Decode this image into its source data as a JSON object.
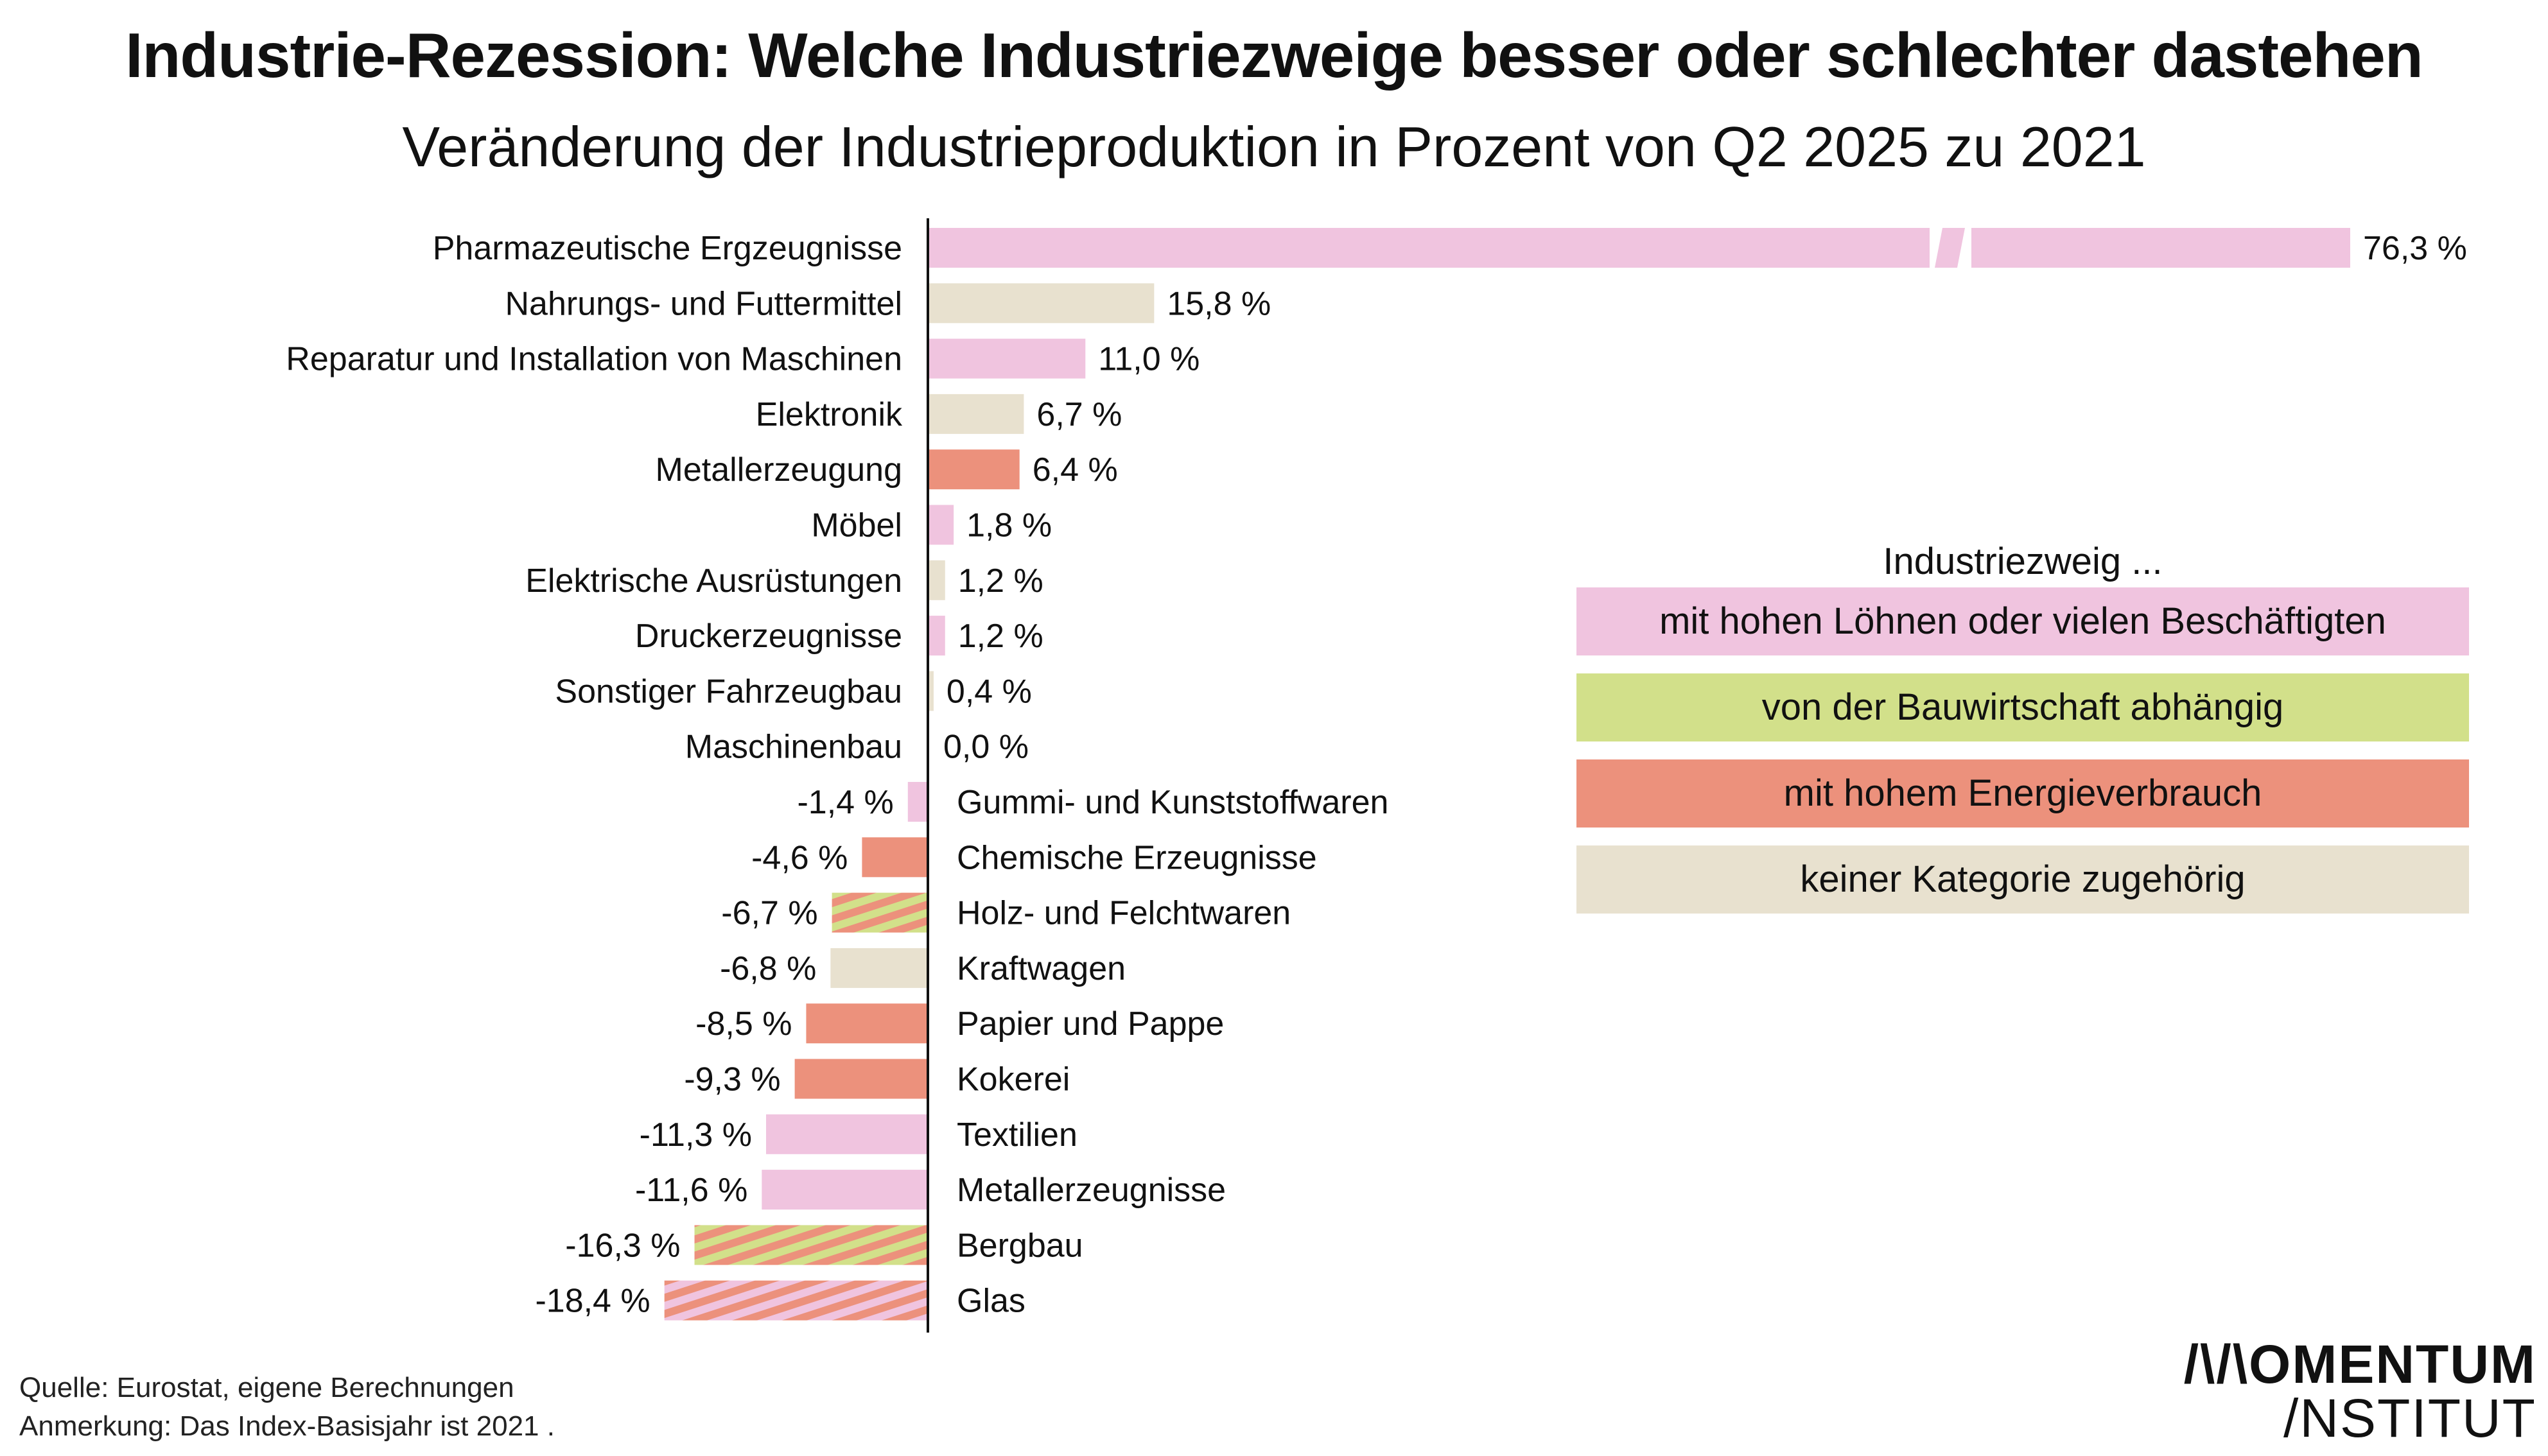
{
  "title": "Industrie-Rezession: Welche Industriezweige besser oder schlechter dastehen",
  "subtitle": "Veränderung der Industrieproduktion in Prozent von Q2 2025 zu 2021",
  "chart_data": {
    "type": "bar",
    "orientation": "horizontal",
    "unit": "%",
    "axis_break_on_largest_bar": true,
    "colors": {
      "high_wages": "#f0c4df",
      "construction": "#d2e08a",
      "energy": "#ec917c",
      "none": "#e8e1cf"
    },
    "bars": [
      {
        "label": "Pharmazeutische Ergzeugnisse",
        "value": 76.3,
        "value_label": "76,3 %",
        "categories": [
          "high_wages"
        ]
      },
      {
        "label": "Nahrungs- und Futtermittel",
        "value": 15.8,
        "value_label": "15,8 %",
        "categories": [
          "none"
        ]
      },
      {
        "label": "Reparatur und Installation von Maschinen",
        "value": 11.0,
        "value_label": "11,0 %",
        "categories": [
          "high_wages"
        ]
      },
      {
        "label": "Elektronik",
        "value": 6.7,
        "value_label": "6,7 %",
        "categories": [
          "none"
        ]
      },
      {
        "label": "Metallerzeugung",
        "value": 6.4,
        "value_label": "6,4 %",
        "categories": [
          "energy"
        ]
      },
      {
        "label": "Möbel",
        "value": 1.8,
        "value_label": "1,8 %",
        "categories": [
          "high_wages"
        ]
      },
      {
        "label": "Elektrische Ausrüstungen",
        "value": 1.2,
        "value_label": "1,2 %",
        "categories": [
          "none"
        ]
      },
      {
        "label": "Druckerzeugnisse",
        "value": 1.2,
        "value_label": "1,2 %",
        "categories": [
          "high_wages"
        ]
      },
      {
        "label": "Sonstiger Fahrzeugbau",
        "value": 0.4,
        "value_label": "0,4 %",
        "categories": [
          "none"
        ]
      },
      {
        "label": "Maschinenbau",
        "value": 0.0,
        "value_label": "0,0 %",
        "categories": [
          "high_wages"
        ]
      },
      {
        "label": "Gummi- und Kunststoffwaren",
        "value": -1.4,
        "value_label": "-1,4 %",
        "categories": [
          "high_wages"
        ]
      },
      {
        "label": "Chemische Erzeugnisse",
        "value": -4.6,
        "value_label": "-4,6 %",
        "categories": [
          "energy"
        ]
      },
      {
        "label": "Holz- und Felchtwaren",
        "value": -6.7,
        "value_label": "-6,7 %",
        "categories": [
          "construction",
          "energy"
        ]
      },
      {
        "label": "Kraftwagen",
        "value": -6.8,
        "value_label": "-6,8 %",
        "categories": [
          "none"
        ]
      },
      {
        "label": "Papier und Pappe",
        "value": -8.5,
        "value_label": "-8,5 %",
        "categories": [
          "energy"
        ]
      },
      {
        "label": "Kokerei",
        "value": -9.3,
        "value_label": "-9,3 %",
        "categories": [
          "energy"
        ]
      },
      {
        "label": "Textilien",
        "value": -11.3,
        "value_label": "-11,3 %",
        "categories": [
          "high_wages"
        ]
      },
      {
        "label": "Metallerzeugnisse",
        "value": -11.6,
        "value_label": "-11,6 %",
        "categories": [
          "high_wages"
        ]
      },
      {
        "label": "Bergbau",
        "value": -16.3,
        "value_label": "-16,3 %",
        "categories": [
          "construction",
          "energy"
        ]
      },
      {
        "label": "Glas",
        "value": -18.4,
        "value_label": "-18,4 %",
        "categories": [
          "high_wages",
          "energy"
        ]
      }
    ]
  },
  "legend": {
    "title": "Industriezweig ...",
    "items": [
      {
        "key": "high_wages",
        "label": "mit hohen Löhnen oder vielen Beschäftigten"
      },
      {
        "key": "construction",
        "label": "von der Bauwirtschaft abhängig"
      },
      {
        "key": "energy",
        "label": "mit hohem Energieverbrauch"
      },
      {
        "key": "none",
        "label": "keiner Kategorie zugehörig"
      }
    ]
  },
  "source": "Quelle: Eurostat, eigene Berechnungen",
  "note": "Anmerkung: Das Index-Basisjahr ist 2021 .",
  "logo": {
    "line1": "/\\/\\OMENTUM",
    "line2": "/NSTITUT"
  }
}
